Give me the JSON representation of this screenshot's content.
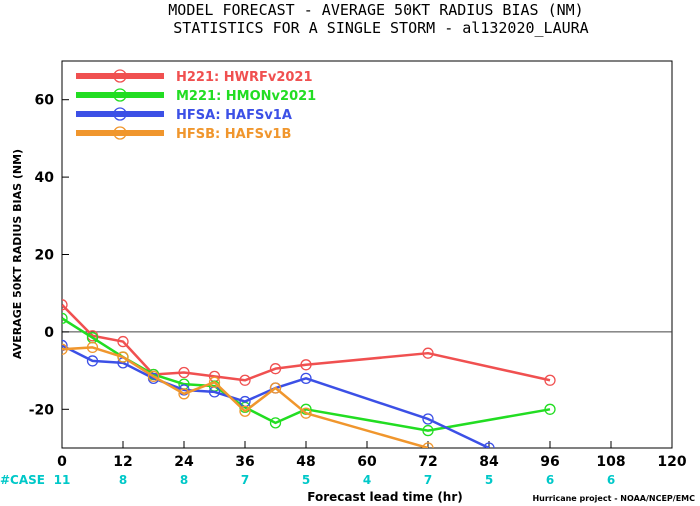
{
  "titles": {
    "line1": "MODEL FORECAST - AVERAGE 50KT RADIUS BIAS (NM)",
    "line2": "STATISTICS FOR A SINGLE STORM - al132020_LAURA"
  },
  "footer": {
    "credit": "Hurricane project - NOAA/NCEP/EMC"
  },
  "case_row": {
    "label": "#CASE",
    "color": "#00c8c8",
    "counts": [
      {
        "x": 0,
        "n": "11"
      },
      {
        "x": 12,
        "n": "8"
      },
      {
        "x": 24,
        "n": "8"
      },
      {
        "x": 36,
        "n": "7"
      },
      {
        "x": 48,
        "n": "5"
      },
      {
        "x": 60,
        "n": "4"
      },
      {
        "x": 72,
        "n": "7"
      },
      {
        "x": 84,
        "n": "5"
      },
      {
        "x": 96,
        "n": "6"
      },
      {
        "x": 108,
        "n": "6"
      }
    ]
  },
  "chart_data": {
    "type": "line",
    "title": "MODEL FORECAST - AVERAGE 50KT RADIUS BIAS (NM)",
    "subtitle": "STATISTICS FOR A SINGLE STORM - al132020_LAURA",
    "xlabel": "Forecast lead time (hr)",
    "ylabel": "AVERAGE 50KT RADIUS BIAS (NM)",
    "xlim": [
      0,
      120
    ],
    "ylim": [
      -30,
      70
    ],
    "xticks": [
      0,
      12,
      24,
      36,
      48,
      60,
      72,
      84,
      96,
      108,
      120
    ],
    "yticks": [
      -20,
      0,
      20,
      40,
      60
    ],
    "zero_line": true,
    "grid": false,
    "legend_position": "top-left",
    "series": [
      {
        "name": "H221: HWRFv2021",
        "color": "#f05050",
        "x": [
          0,
          6,
          12,
          18,
          24,
          30,
          36,
          42,
          48,
          72,
          96
        ],
        "y": [
          7,
          -1,
          -2.5,
          -11,
          -10.5,
          -11.5,
          -12.5,
          -9.5,
          -8.5,
          -5.5,
          -12.5
        ]
      },
      {
        "name": "M221: HMONv2021",
        "color": "#22dd22",
        "x": [
          0,
          6,
          12,
          18,
          24,
          30,
          36,
          42,
          48,
          72,
          96
        ],
        "y": [
          3.5,
          -1.5,
          -6.5,
          -11,
          -13.5,
          -14,
          -19.5,
          -23.5,
          -20,
          -25.5,
          -20
        ]
      },
      {
        "name": "HFSA: HAFSv1A",
        "color": "#3c50e6",
        "x": [
          0,
          6,
          12,
          18,
          24,
          30,
          36,
          42,
          48,
          72,
          84
        ],
        "y": [
          -3.5,
          -7.5,
          -8,
          -12,
          -15,
          -15.5,
          -18,
          -14.5,
          -12,
          -22.5,
          -30
        ]
      },
      {
        "name": "HFSB: HAFSv1B",
        "color": "#f0962d",
        "x": [
          0,
          6,
          12,
          18,
          24,
          30,
          36,
          42,
          48,
          72
        ],
        "y": [
          -4.5,
          -4,
          -6.5,
          -11.5,
          -16,
          -13,
          -20.5,
          -14.5,
          -21,
          -30
        ]
      }
    ]
  }
}
